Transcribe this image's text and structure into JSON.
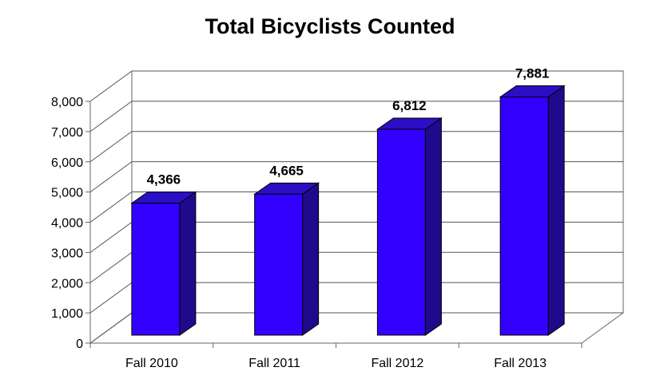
{
  "chart_data": {
    "type": "bar",
    "title": "Total Bicyclists Counted",
    "categories": [
      "Fall 2010",
      "Fall 2011",
      "Fall 2012",
      "Fall 2013"
    ],
    "values": [
      4366,
      4665,
      6812,
      7881
    ],
    "data_labels": [
      "4,366",
      "4,665",
      "6,812",
      "7,881"
    ],
    "ylim": [
      0,
      8000
    ],
    "y_ticks": [
      0,
      1000,
      2000,
      3000,
      4000,
      5000,
      6000,
      7000,
      8000
    ],
    "y_tick_labels": [
      "0",
      "1,000",
      "2,000",
      "3,000",
      "4,000",
      "5,000",
      "6,000",
      "7,000",
      "8,000"
    ],
    "xlabel": "",
    "ylabel": "",
    "grid": true,
    "legend": "none",
    "style": "3d",
    "colors": {
      "bar_front": "#3300ff",
      "bar_top": "#2a0fc4",
      "bar_side": "#1f0a8c",
      "gridline": "#555555",
      "axis": "#666666"
    }
  }
}
